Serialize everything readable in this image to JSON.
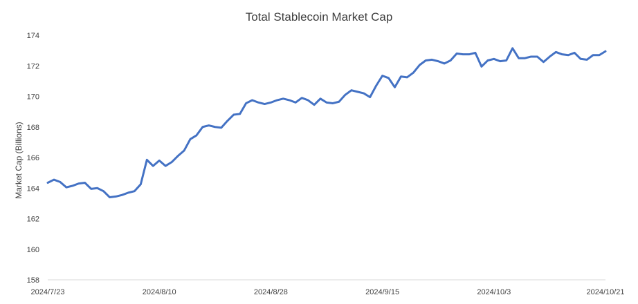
{
  "chart_data": {
    "type": "line",
    "title": "Total Stablecoin Market Cap",
    "xlabel": "",
    "ylabel": "Market Cap (Billions)",
    "ylim": [
      158,
      174
    ],
    "yticks": [
      158,
      160,
      162,
      164,
      166,
      168,
      170,
      172,
      174
    ],
    "xticks": [
      "2024/7/23",
      "2024/8/10",
      "2024/8/28",
      "2024/9/15",
      "2024/10/3",
      "2024/10/21"
    ],
    "grid": false,
    "line_color": "#4472C4",
    "series": [
      {
        "x_start": "2024/7/23",
        "x_end": "2024/10/21",
        "values": [
          164.35,
          164.55,
          164.4,
          164.05,
          164.15,
          164.3,
          164.35,
          163.95,
          164.0,
          163.8,
          163.4,
          163.45,
          163.55,
          163.7,
          163.8,
          164.25,
          165.85,
          165.45,
          165.8,
          165.45,
          165.7,
          166.1,
          166.45,
          167.2,
          167.45,
          168.0,
          168.1,
          168.0,
          167.95,
          168.4,
          168.8,
          168.85,
          169.55,
          169.75,
          169.6,
          169.5,
          169.6,
          169.75,
          169.85,
          169.75,
          169.6,
          169.9,
          169.75,
          169.45,
          169.85,
          169.6,
          169.55,
          169.65,
          170.1,
          170.4,
          170.3,
          170.2,
          169.95,
          170.7,
          171.35,
          171.2,
          170.6,
          171.3,
          171.25,
          171.55,
          172.05,
          172.35,
          172.4,
          172.3,
          172.15,
          172.35,
          172.8,
          172.75,
          172.75,
          172.85,
          171.95,
          172.35,
          172.45,
          172.3,
          172.35,
          173.15,
          172.5,
          172.5,
          172.6,
          172.6,
          172.25,
          172.6,
          172.9,
          172.75,
          172.7,
          172.85,
          172.45,
          172.4,
          172.7,
          172.7,
          172.95
        ]
      }
    ]
  }
}
